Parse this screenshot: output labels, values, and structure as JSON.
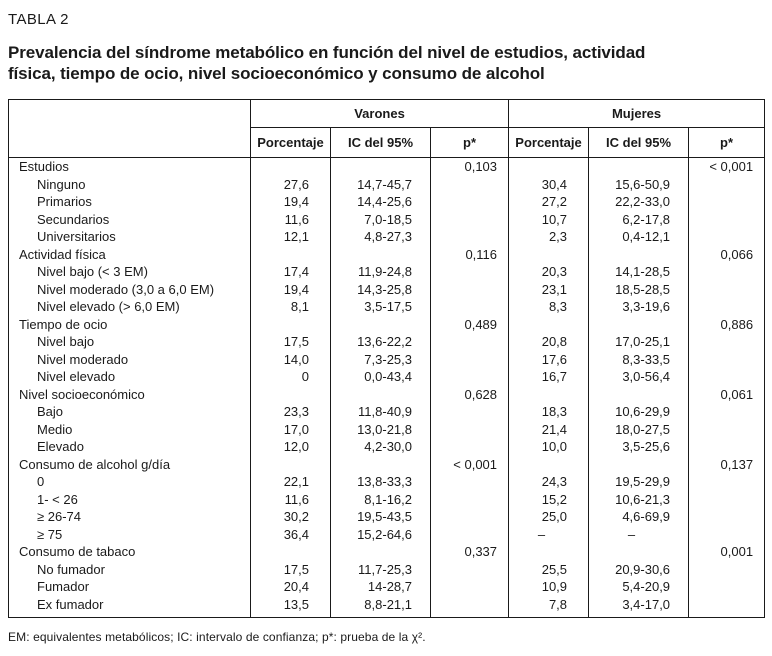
{
  "page": {
    "table_label": "TABLA 2",
    "title_lines": [
      "Prevalencia del síndrome metabólico en función del nivel de estudios, actividad",
      "física, tiempo de ocio, nivel socioeconómico y consumo de alcohol"
    ],
    "footnote": "EM: equivalentes metabólicos; IC: intervalo de confianza; p*: prueba de la χ²."
  },
  "table": {
    "groups": [
      "Varones",
      "Mujeres"
    ],
    "subheaders": [
      "Porcentaje",
      "IC del 95%",
      "p*"
    ],
    "rows": [
      {
        "cls": "cat",
        "label": "Estudios",
        "vp": "",
        "vic": "",
        "vpp": "0,103",
        "mp": "",
        "mic": "",
        "mpp": "< 0,001"
      },
      {
        "cls": "sub",
        "label": "Ninguno",
        "vp": "27,6",
        "vic": "14,7-45,7",
        "vpp": "",
        "mp": "30,4",
        "mic": "15,6-50,9",
        "mpp": ""
      },
      {
        "cls": "sub",
        "label": "Primarios",
        "vp": "19,4",
        "vic": "14,4-25,6",
        "vpp": "",
        "mp": "27,2",
        "mic": "22,2-33,0",
        "mpp": ""
      },
      {
        "cls": "sub",
        "label": "Secundarios",
        "vp": "11,6",
        "vic": "7,0-18,5",
        "vpp": "",
        "mp": "10,7",
        "mic": "6,2-17,8",
        "mpp": ""
      },
      {
        "cls": "sub",
        "label": "Universitarios",
        "vp": "12,1",
        "vic": "4,8-27,3",
        "vpp": "",
        "mp": "2,3",
        "mic": "0,4-12,1",
        "mpp": ""
      },
      {
        "cls": "cat",
        "label": "Actividad física",
        "vp": "",
        "vic": "",
        "vpp": "0,116",
        "mp": "",
        "mic": "",
        "mpp": "0,066"
      },
      {
        "cls": "sub",
        "label": "Nivel bajo (< 3 EM)",
        "vp": "17,4",
        "vic": "11,9-24,8",
        "vpp": "",
        "mp": "20,3",
        "mic": "14,1-28,5",
        "mpp": ""
      },
      {
        "cls": "sub",
        "label": "Nivel moderado (3,0 a 6,0 EM)",
        "vp": "19,4",
        "vic": "14,3-25,8",
        "vpp": "",
        "mp": "23,1",
        "mic": "18,5-28,5",
        "mpp": ""
      },
      {
        "cls": "sub",
        "label": "Nivel elevado (> 6,0 EM)",
        "vp": "8,1",
        "vic": "3,5-17,5",
        "vpp": "",
        "mp": "8,3",
        "mic": "3,3-19,6",
        "mpp": ""
      },
      {
        "cls": "cat",
        "label": "Tiempo de ocio",
        "vp": "",
        "vic": "",
        "vpp": "0,489",
        "mp": "",
        "mic": "",
        "mpp": "0,886"
      },
      {
        "cls": "sub",
        "label": "Nivel bajo",
        "vp": "17,5",
        "vic": "13,6-22,2",
        "vpp": "",
        "mp": "20,8",
        "mic": "17,0-25,1",
        "mpp": ""
      },
      {
        "cls": "sub",
        "label": "Nivel moderado",
        "vp": "14,0",
        "vic": "7,3-25,3",
        "vpp": "",
        "mp": "17,6",
        "mic": "8,3-33,5",
        "mpp": ""
      },
      {
        "cls": "sub",
        "label": "Nivel elevado",
        "vp": "0",
        "vic": "0,0-43,4",
        "vpp": "",
        "mp": "16,7",
        "mic": "3,0-56,4",
        "mpp": ""
      },
      {
        "cls": "cat",
        "label": "Nivel socioeconómico",
        "vp": "",
        "vic": "",
        "vpp": "0,628",
        "mp": "",
        "mic": "",
        "mpp": "0,061"
      },
      {
        "cls": "sub",
        "label": "Bajo",
        "vp": "23,3",
        "vic": "11,8-40,9",
        "vpp": "",
        "mp": "18,3",
        "mic": "10,6-29,9",
        "mpp": ""
      },
      {
        "cls": "sub",
        "label": "Medio",
        "vp": "17,0",
        "vic": "13,0-21,8",
        "vpp": "",
        "mp": "21,4",
        "mic": "18,0-27,5",
        "mpp": ""
      },
      {
        "cls": "sub",
        "label": "Elevado",
        "vp": "12,0",
        "vic": "4,2-30,0",
        "vpp": "",
        "mp": "10,0",
        "mic": "3,5-25,6",
        "mpp": ""
      },
      {
        "cls": "cat",
        "label": "Consumo de alcohol g/día",
        "vp": "",
        "vic": "",
        "vpp": "< 0,001",
        "mp": "",
        "mic": "",
        "mpp": "0,137"
      },
      {
        "cls": "sub",
        "label": "0",
        "vp": "22,1",
        "vic": "13,8-33,3",
        "vpp": "",
        "mp": "24,3",
        "mic": "19,5-29,9",
        "mpp": ""
      },
      {
        "cls": "sub",
        "label": "1- < 26",
        "vp": "11,6",
        "vic": "8,1-16,2",
        "vpp": "",
        "mp": "15,2",
        "mic": "10,6-21,3",
        "mpp": ""
      },
      {
        "cls": "sub",
        "label": "≥ 26-74",
        "vp": "30,2",
        "vic": "19,5-43,5",
        "vpp": "",
        "mp": "25,0",
        "mic": "4,6-69,9",
        "mpp": ""
      },
      {
        "cls": "sub",
        "label": "≥ 75",
        "vp": "36,4",
        "vic": "15,2-64,6",
        "vpp": "",
        "mp": "–",
        "mic": "–",
        "mpp": "",
        "dashCls": "dash"
      },
      {
        "cls": "cat",
        "label": "Consumo de tabaco",
        "vp": "",
        "vic": "",
        "vpp": "0,337",
        "mp": "",
        "mic": "",
        "mpp": "0,001"
      },
      {
        "cls": "sub",
        "label": "No fumador",
        "vp": "17,5",
        "vic": "11,7-25,3",
        "vpp": "",
        "mp": "25,5",
        "mic": "20,9-30,6",
        "mpp": ""
      },
      {
        "cls": "sub",
        "label": "Fumador",
        "vp": "20,4",
        "vic": "14-28,7",
        "vpp": "",
        "mp": "10,9",
        "mic": "5,4-20,9",
        "mpp": ""
      },
      {
        "cls": "sub",
        "label": "Ex fumador",
        "vp": "13,5",
        "vic": "8,8-21,1",
        "vpp": "",
        "mp": "7,8",
        "mic": "3,4-17,0",
        "mpp": ""
      }
    ]
  }
}
